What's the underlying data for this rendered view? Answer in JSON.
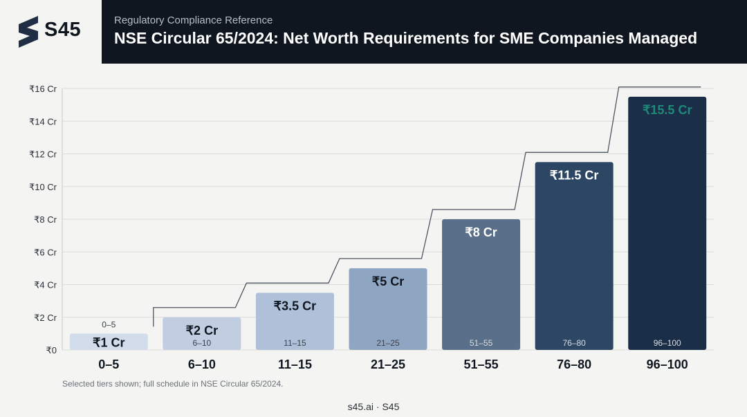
{
  "brand": {
    "name": "S45",
    "logo_icon": "s45-logo-icon"
  },
  "header": {
    "subtitle": "Regulatory Compliance Reference",
    "title": "NSE Circular 65/2024: Net Worth Requirements for SME Companies Managed"
  },
  "chart_data": {
    "type": "bar",
    "categories": [
      "0–5",
      "6–10",
      "11–15",
      "21–25",
      "51–55",
      "76–80",
      "96–100"
    ],
    "values": [
      1,
      2,
      3.5,
      5,
      8,
      11.5,
      15.5
    ],
    "value_labels": [
      "₹1 Cr",
      "₹2 Cr",
      "₹3.5 Cr",
      "₹5 Cr",
      "₹8 Cr",
      "₹11.5 Cr",
      "₹15.5 Cr"
    ],
    "inner_labels": [
      "0–5",
      "6–10",
      "11–15",
      "21–25",
      "51–55",
      "76–80",
      "96–100"
    ],
    "yticks": [
      0,
      2,
      4,
      6,
      8,
      10,
      12,
      14,
      16
    ],
    "ytick_labels": [
      "₹0",
      "₹2 Cr",
      "₹4 Cr",
      "₹6 Cr",
      "₹8 Cr",
      "₹10 Cr",
      "₹12 Cr",
      "₹14 Cr",
      "₹16 Cr"
    ],
    "ylim": [
      0,
      16
    ],
    "step_line": true,
    "grid": true,
    "colors": [
      "#d3dcea",
      "#c1cee2",
      "#afc0d9",
      "#8ea6c2",
      "#5a6f89",
      "#2c4663",
      "#1b2e48"
    ],
    "highlight_color": "#1f8a7a"
  },
  "footnote": "Selected tiers shown; full schedule in NSE Circular 65/2024.",
  "source": "s45.ai · S45"
}
